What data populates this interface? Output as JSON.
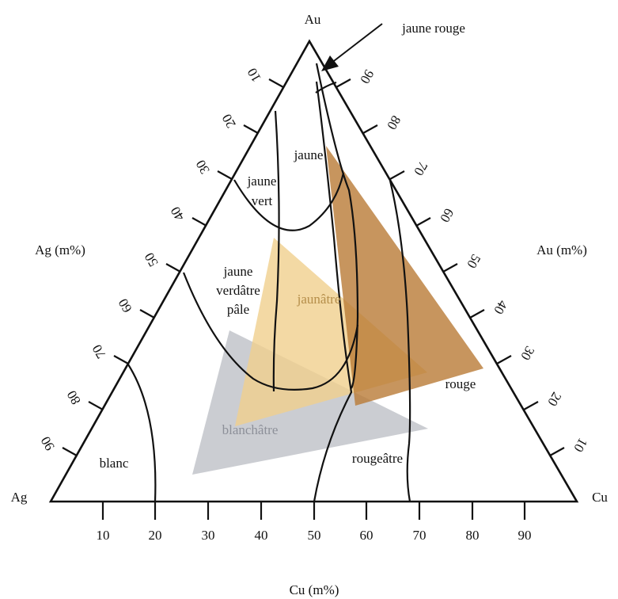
{
  "diagram": {
    "vertex_labels": {
      "top": "Au",
      "left": "Ag",
      "right": "Cu"
    },
    "axis_titles": {
      "left": "Ag (m%)",
      "right": "Au (m%)",
      "bottom": "Cu (m%)"
    },
    "bottom_ticks": [
      "10",
      "20",
      "30",
      "40",
      "50",
      "60",
      "70",
      "80",
      "90"
    ],
    "left_ticks": [
      "10",
      "20",
      "30",
      "40",
      "50",
      "60",
      "70",
      "80",
      "90"
    ],
    "right_ticks": [
      "90",
      "80",
      "70",
      "60",
      "50",
      "40",
      "30",
      "20",
      "10"
    ],
    "region_labels": {
      "jaune_rouge": "jaune rouge",
      "jaune": "jaune",
      "jaune_vert_line1": "jaune",
      "jaune_vert_line2": "vert",
      "pale_line1": "jaune",
      "pale_line2": "verdâtre",
      "pale_line3": "pâle",
      "jaunatre": "jaunâtre",
      "rouge": "rouge",
      "blanchatre": "blanchâtre",
      "blanc": "blanc",
      "rougeatre": "rougeâtre"
    },
    "colors": {
      "frame": "#111111",
      "gray_region": "#b9bcc3",
      "pale_yellow_region": "#f0cf8d",
      "brown_region": "#b97a36"
    }
  }
}
